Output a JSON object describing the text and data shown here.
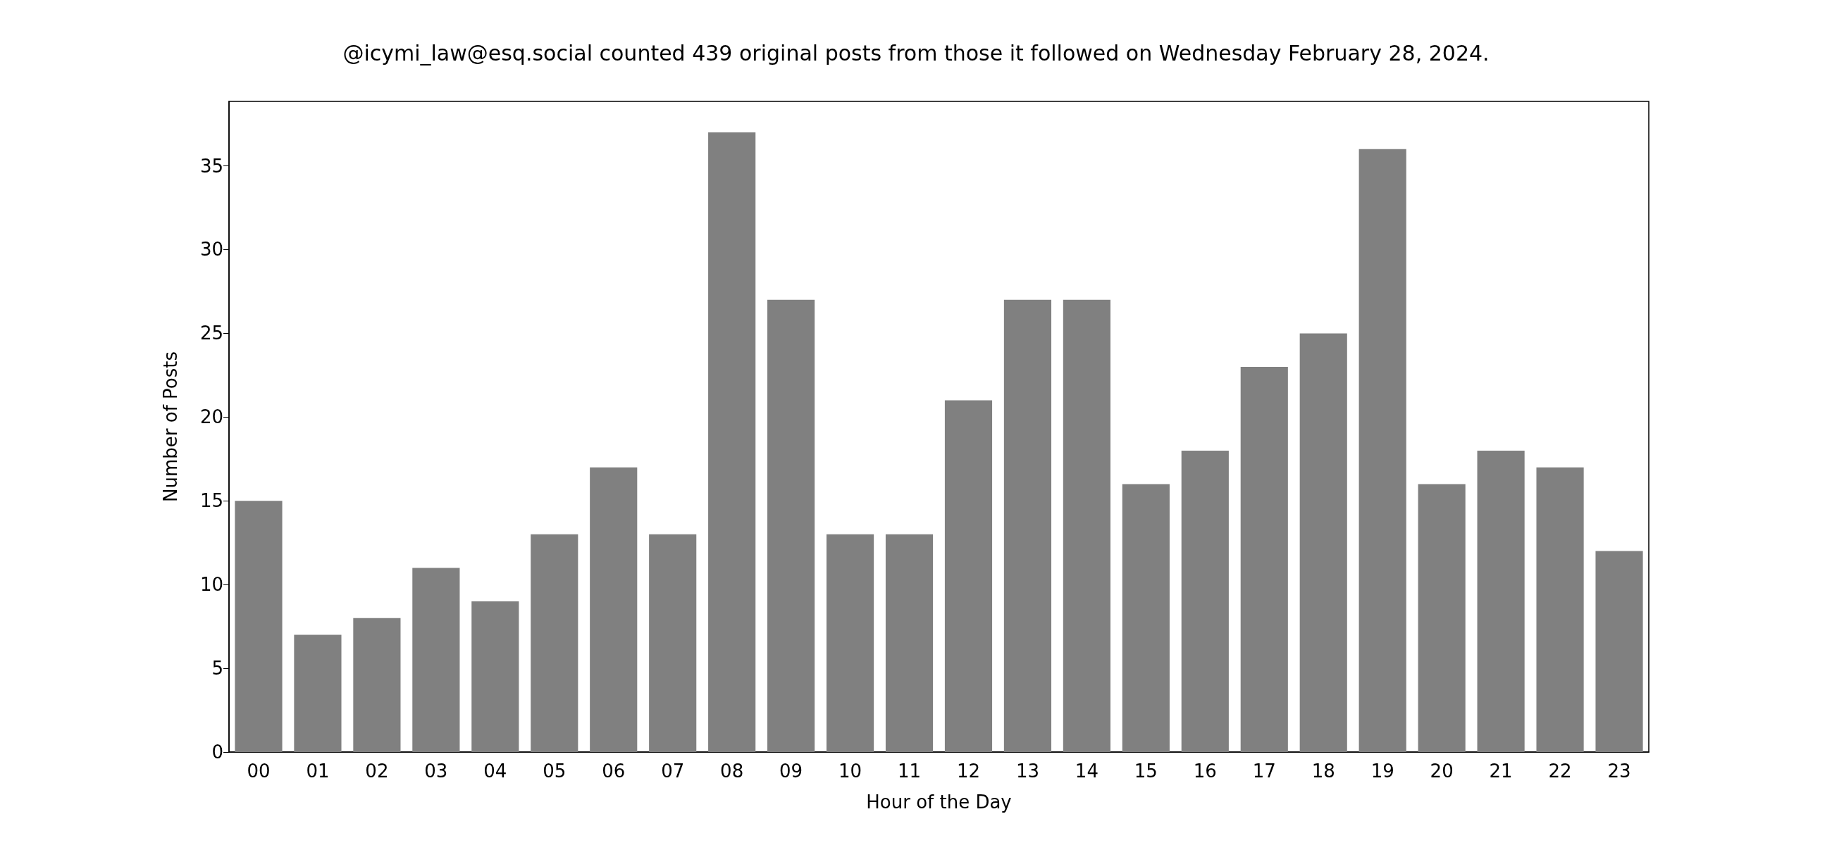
{
  "chart_data": {
    "type": "bar",
    "title": "@icymi_law@esq.social counted 439 original posts from those it followed on Wednesday February 28, 2024.",
    "xlabel": "Hour of the Day",
    "ylabel": "Number of Posts",
    "categories": [
      "00",
      "01",
      "02",
      "03",
      "04",
      "05",
      "06",
      "07",
      "08",
      "09",
      "10",
      "11",
      "12",
      "13",
      "14",
      "15",
      "16",
      "17",
      "18",
      "19",
      "20",
      "21",
      "22",
      "23"
    ],
    "values": [
      15,
      7,
      8,
      11,
      9,
      13,
      17,
      13,
      37,
      27,
      13,
      13,
      21,
      27,
      27,
      16,
      18,
      23,
      25,
      36,
      16,
      18,
      17,
      12
    ],
    "color": "#808080",
    "ylim": [
      0,
      38.85
    ],
    "yticks": [
      0,
      5,
      10,
      15,
      20,
      25,
      30,
      35
    ],
    "grid": false
  }
}
